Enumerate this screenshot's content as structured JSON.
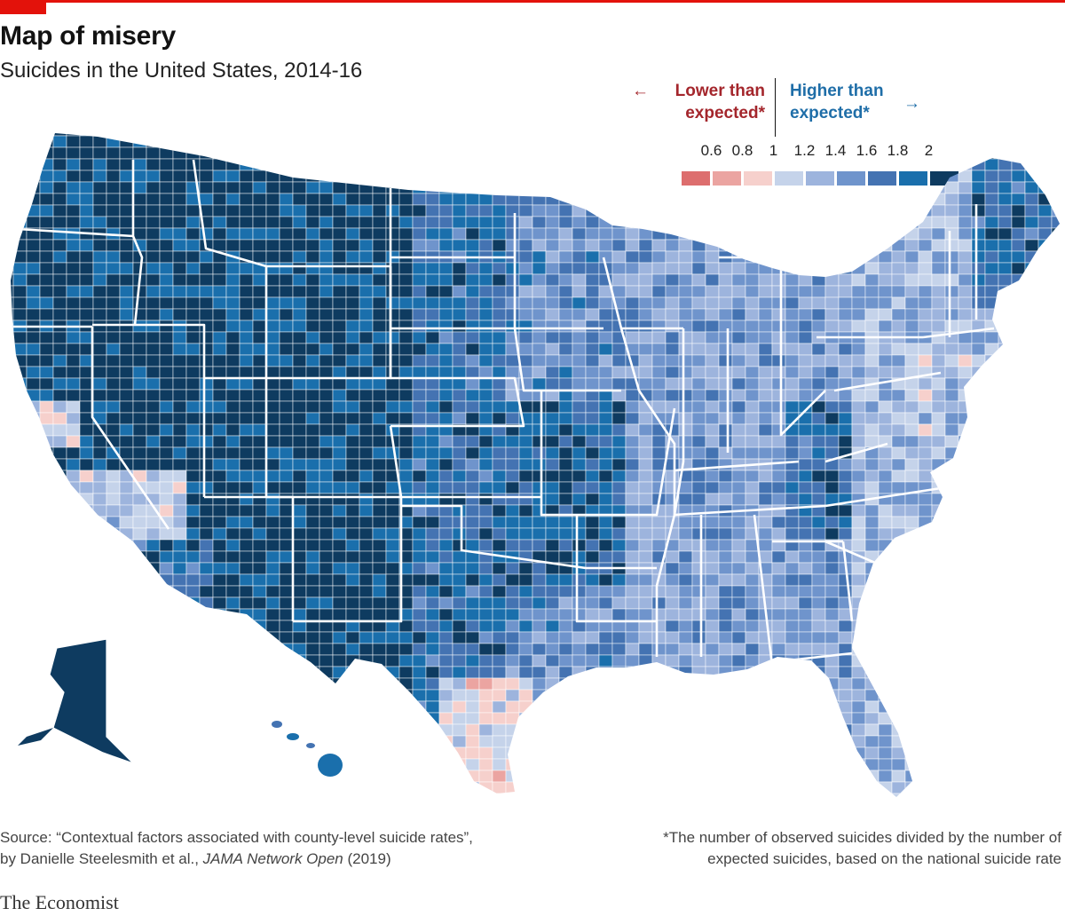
{
  "header": {
    "title": "Map of misery",
    "subtitle": "Suicides in the United States, 2014-16"
  },
  "legend": {
    "lower_label": "Lower than expected*",
    "lower_line1": "Lower than",
    "lower_line2": "expected*",
    "higher_line1": "Higher than",
    "higher_line2": "expected*",
    "lower_arrow": "←",
    "higher_arrow": "→",
    "ticks": [
      "0.6",
      "0.8",
      "1",
      "1.2",
      "1.4",
      "1.6",
      "1.8",
      "2"
    ],
    "colors": [
      "#dd6e6e",
      "#eba4a1",
      "#f6d0cc",
      "#c5d3ea",
      "#9db4dd",
      "#6f94cc",
      "#4473b2",
      "#1a6fac",
      "#0e3b60"
    ]
  },
  "footer": {
    "source_line1": "Source: “Contextual factors associated with county-level suicide rates”,",
    "source_line2_prefix": "by Danielle Steelesmith et al., ",
    "source_journal": "JAMA Network Open",
    "source_year": " (2019)",
    "note_line1": "*The number of observed suicides divided by the number of",
    "note_line2": "expected suicides, based on the national suicide rate",
    "brand": "The Economist"
  }
}
